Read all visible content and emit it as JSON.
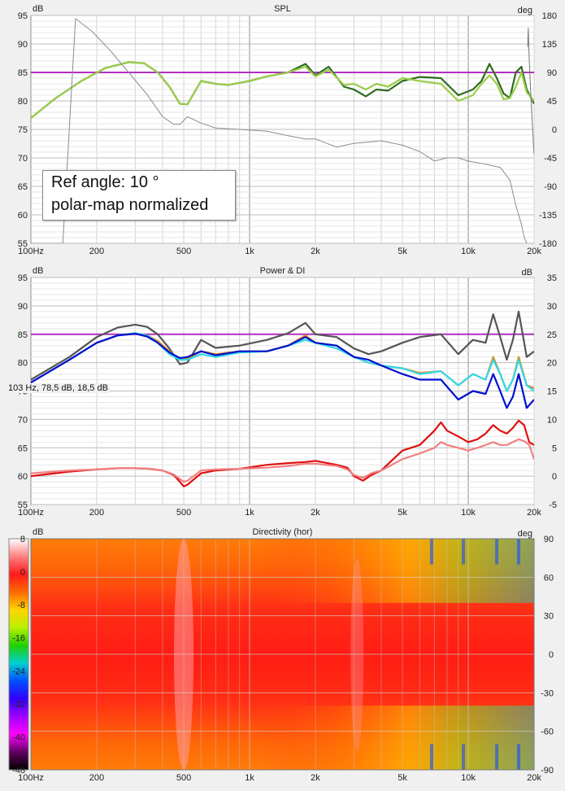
{
  "chart_data": [
    {
      "id": "spl",
      "type": "line",
      "title": "SPL",
      "y_unit_left": "dB",
      "y_unit_right": "deg",
      "x_scale": "log",
      "xlim": [
        100,
        20000
      ],
      "ylim": [
        55,
        95
      ],
      "y2lim": [
        -180,
        180
      ],
      "x_ticks": [
        "100Hz",
        "200",
        "500",
        "1k",
        "2k",
        "5k",
        "10k",
        "20k"
      ],
      "y_ticks": [
        "55",
        "60",
        "65",
        "70",
        "75",
        "80",
        "85",
        "90",
        "95"
      ],
      "y2_ticks": [
        "-180",
        "-135",
        "-90",
        "-45",
        "0",
        "45",
        "90",
        "135",
        "180"
      ],
      "reference_level": 85,
      "annotation": [
        "Ref angle: 10 °",
        "polar-map normalized"
      ],
      "series": [
        {
          "axis": "left",
          "color": "#2e6b1f",
          "x": [
            100,
            130,
            170,
            220,
            280,
            330,
            380,
            430,
            480,
            520,
            600,
            700,
            800,
            1000,
            1200,
            1500,
            1800,
            2000,
            2300,
            2700,
            3000,
            3400,
            3800,
            4300,
            5000,
            6000,
            7500,
            9000,
            10500,
            11500,
            12500,
            13500,
            14500,
            15500,
            16500,
            17500,
            18500,
            20000
          ],
          "y": [
            77,
            80.5,
            83.5,
            85.8,
            86.8,
            86.6,
            85,
            82.5,
            79.5,
            79.4,
            83.5,
            83,
            82.8,
            83.5,
            84.3,
            85,
            86.5,
            84.5,
            86,
            82.5,
            82,
            80.8,
            82,
            81.8,
            83.5,
            84.2,
            84,
            81,
            82,
            83.5,
            86.5,
            84,
            81.3,
            80.5,
            85,
            86,
            82,
            79.5
          ]
        },
        {
          "axis": "left",
          "color": "#9ccc4a",
          "x": [
            100,
            130,
            170,
            220,
            280,
            330,
            380,
            430,
            480,
            520,
            600,
            700,
            800,
            1000,
            1200,
            1500,
            1800,
            2000,
            2300,
            2700,
            3000,
            3400,
            3800,
            4300,
            5000,
            6000,
            7500,
            9000,
            10500,
            11500,
            12500,
            13500,
            14500,
            15500,
            16500,
            17500,
            18500,
            20000
          ],
          "y": [
            77,
            80.5,
            83.5,
            85.8,
            86.8,
            86.6,
            85,
            82.5,
            79.5,
            79.4,
            83.5,
            83,
            82.8,
            83.5,
            84.3,
            85,
            86,
            84.3,
            85.5,
            82.8,
            83,
            82,
            83,
            82.5,
            84,
            83.5,
            83,
            80,
            81,
            83,
            84.5,
            83,
            80.3,
            80.5,
            82.5,
            85,
            81.5,
            80
          ]
        },
        {
          "axis": "right",
          "color": "#8c8c8c",
          "x": [
            100,
            120,
            140,
            160,
            190,
            230,
            280,
            340,
            400,
            450,
            480,
            520,
            600,
            700,
            900,
            1200,
            1500,
            1800,
            2000,
            2500,
            3000,
            3500,
            4000,
            5000,
            6000,
            7000,
            8000,
            9000,
            10000,
            12000,
            14000,
            15500,
            16500,
            17500,
            18000,
            18500,
            18700
          ],
          "y": [
            -180,
            -180,
            -180,
            175,
            155,
            125,
            90,
            55,
            20,
            8,
            8,
            20,
            10,
            2,
            0,
            -3,
            -10,
            -15,
            -15,
            -28,
            -22,
            -20,
            -18,
            -25,
            -35,
            -50,
            -45,
            -45,
            -50,
            -55,
            -60,
            -80,
            -120,
            -150,
            -170,
            -180,
            -180
          ]
        },
        {
          "axis": "right",
          "color": "#777777",
          "x": [
            18700,
            18800,
            19000,
            19300,
            19700,
            20000
          ],
          "y": [
            130,
            160,
            110,
            60,
            0,
            -40
          ]
        }
      ]
    },
    {
      "id": "power_di",
      "type": "line",
      "title": "Power & DI",
      "y_unit_left": "dB",
      "y_unit_right": "dB",
      "x_scale": "log",
      "xlim": [
        100,
        20000
      ],
      "ylim": [
        55,
        95
      ],
      "y2lim": [
        -5,
        35
      ],
      "x_ticks": [
        "100Hz",
        "200",
        "500",
        "1k",
        "2k",
        "5k",
        "10k",
        "20k"
      ],
      "y_ticks": [
        "55",
        "60",
        "65",
        "70",
        "75",
        "80",
        "85",
        "90",
        "95"
      ],
      "y2_ticks": [
        "-5",
        "0",
        "5",
        "10",
        "15",
        "20",
        "25",
        "30",
        "35"
      ],
      "reference_level": 85,
      "cursor_readout": "103 Hz, 78,5 dB, 18,5 dB",
      "series": [
        {
          "axis": "left",
          "color": "#555555",
          "x": [
            100,
            150,
            200,
            250,
            300,
            340,
            380,
            430,
            480,
            520,
            600,
            700,
            900,
            1200,
            1500,
            1800,
            2000,
            2500,
            3000,
            3500,
            4000,
            5000,
            6000,
            7500,
            9000,
            10500,
            12000,
            13000,
            14000,
            15000,
            16000,
            17000,
            18500,
            20000
          ],
          "y": [
            77,
            81,
            84.5,
            86.2,
            86.7,
            86.3,
            85,
            82.5,
            79.7,
            80,
            84,
            82.6,
            83,
            84,
            85.2,
            87,
            85,
            84.5,
            82.5,
            81.5,
            82,
            83.5,
            84.5,
            85,
            81.5,
            84,
            83.5,
            88.5,
            84.5,
            80.5,
            84,
            89,
            81,
            82
          ]
        },
        {
          "axis": "left",
          "color": "#e08a1c",
          "x": [
            100,
            150,
            200,
            250,
            300,
            340,
            380,
            430,
            480,
            520,
            600,
            700,
            900,
            1200,
            1500,
            1800,
            2000,
            2500,
            3000,
            3500,
            4000,
            5000,
            6000,
            7500,
            9000,
            10500,
            12000,
            13000,
            14000,
            15000,
            16000,
            17000,
            18500,
            20000
          ],
          "y": [
            76.5,
            80.5,
            83.5,
            84.8,
            85.2,
            84.8,
            83.8,
            82,
            80.5,
            80.7,
            82,
            81.5,
            82,
            82,
            83,
            84.8,
            83.5,
            83,
            81,
            80,
            79.5,
            79,
            78.2,
            78.5,
            76,
            78,
            77,
            81,
            78,
            75,
            77,
            81,
            76,
            75.5
          ]
        },
        {
          "axis": "left",
          "color": "#30d8e8",
          "x": [
            100,
            150,
            200,
            250,
            300,
            340,
            380,
            430,
            480,
            520,
            600,
            700,
            900,
            1200,
            1500,
            1800,
            2000,
            2500,
            3000,
            3500,
            4000,
            5000,
            6000,
            7500,
            9000,
            10500,
            12000,
            13000,
            14000,
            15000,
            16000,
            17000,
            18500,
            20000
          ],
          "y": [
            76.5,
            80.5,
            83.5,
            84.8,
            85.2,
            84.8,
            83.5,
            81.5,
            80.5,
            80.5,
            81.5,
            81,
            81.8,
            82,
            83,
            84,
            83.5,
            82.5,
            81,
            80,
            79.5,
            79,
            78,
            78.5,
            76,
            78,
            77,
            80.5,
            78,
            75,
            77,
            80.5,
            76,
            75
          ]
        },
        {
          "axis": "left",
          "color": "#0010d0",
          "x": [
            100,
            150,
            200,
            250,
            300,
            340,
            380,
            430,
            480,
            520,
            600,
            700,
            900,
            1200,
            1500,
            1800,
            2000,
            2500,
            3000,
            3500,
            4000,
            5000,
            6000,
            7500,
            9000,
            10500,
            12000,
            13000,
            14000,
            15000,
            16000,
            17000,
            18500,
            20000
          ],
          "y": [
            76.5,
            80.5,
            83.5,
            84.8,
            85.1,
            84.6,
            83.5,
            81.8,
            80.8,
            81,
            82,
            81.3,
            82,
            82,
            83,
            84.5,
            83.5,
            83,
            81,
            80.5,
            79.5,
            78,
            77,
            77,
            73.5,
            75,
            74.5,
            78,
            75,
            72,
            74,
            78,
            72,
            73.5
          ]
        },
        {
          "axis": "right",
          "color": "#e01010",
          "x": [
            100,
            150,
            200,
            250,
            300,
            350,
            400,
            450,
            480,
            500,
            520,
            600,
            700,
            900,
            1200,
            1500,
            1800,
            2000,
            2500,
            2800,
            3000,
            3300,
            3600,
            4000,
            5000,
            6000,
            7000,
            7500,
            8000,
            9000,
            10000,
            11000,
            12000,
            13000,
            14000,
            15000,
            16000,
            17000,
            18000,
            19000,
            20000
          ],
          "y": [
            0,
            0.8,
            1.2,
            1.4,
            1.4,
            1.3,
            1.0,
            0.2,
            -1,
            -1.8,
            -1.5,
            0.5,
            1,
            1.3,
            2,
            2.3,
            2.5,
            2.7,
            2,
            1.5,
            0,
            -0.8,
            0.2,
            1,
            4.5,
            5.5,
            8,
            9.5,
            8,
            7,
            6,
            6.5,
            7.5,
            9,
            8,
            7.5,
            8.5,
            9.8,
            9,
            6,
            5.5
          ]
        },
        {
          "axis": "right",
          "color": "#f08080",
          "x": [
            100,
            150,
            200,
            250,
            300,
            350,
            400,
            450,
            480,
            500,
            520,
            600,
            700,
            900,
            1200,
            1500,
            1800,
            2000,
            2500,
            2800,
            3000,
            3300,
            3600,
            4000,
            5000,
            6000,
            7000,
            7500,
            8000,
            9000,
            10000,
            11000,
            12000,
            13000,
            14000,
            15000,
            16000,
            17000,
            18000,
            19000,
            20000
          ],
          "y": [
            0.5,
            1.0,
            1.2,
            1.4,
            1.4,
            1.3,
            1.0,
            0.3,
            -0.5,
            -1,
            -0.8,
            1,
            1.2,
            1.3,
            1.5,
            1.8,
            2.2,
            2.2,
            1.8,
            1.2,
            0.2,
            -0.3,
            0.5,
            1,
            3,
            4,
            5,
            6,
            5.5,
            5,
            4.5,
            5,
            5.5,
            6,
            5.5,
            5.5,
            6,
            6.5,
            6.2,
            5.5,
            3
          ]
        }
      ]
    },
    {
      "id": "directivity",
      "type": "heatmap",
      "title": "Directivity (hor)",
      "y_unit_left": "dB",
      "y_unit_right": "deg",
      "x_scale": "log",
      "xlim": [
        100,
        20000
      ],
      "ylim": [
        -90,
        90
      ],
      "x_ticks": [
        "100Hz",
        "200",
        "500",
        "1k",
        "2k",
        "5k",
        "10k",
        "20k"
      ],
      "y2_ticks": [
        "90",
        "60",
        "30",
        "0",
        "-30",
        "-60",
        "-90"
      ],
      "colorbar_ticks": [
        "8",
        "0",
        "-8",
        "-16",
        "-24",
        "-32",
        "-40",
        "-48"
      ],
      "colorbar_range": [
        -48,
        8
      ],
      "colorbar_stops": [
        "#ffffff",
        "#ff8080",
        "#ff1a1a",
        "#ff6a00",
        "#ffd400",
        "#b8f000",
        "#20d000",
        "#00d0d0",
        "#0050ff",
        "#3000ff",
        "#a000ff",
        "#ff00ff",
        "#600060",
        "#000000"
      ]
    }
  ]
}
